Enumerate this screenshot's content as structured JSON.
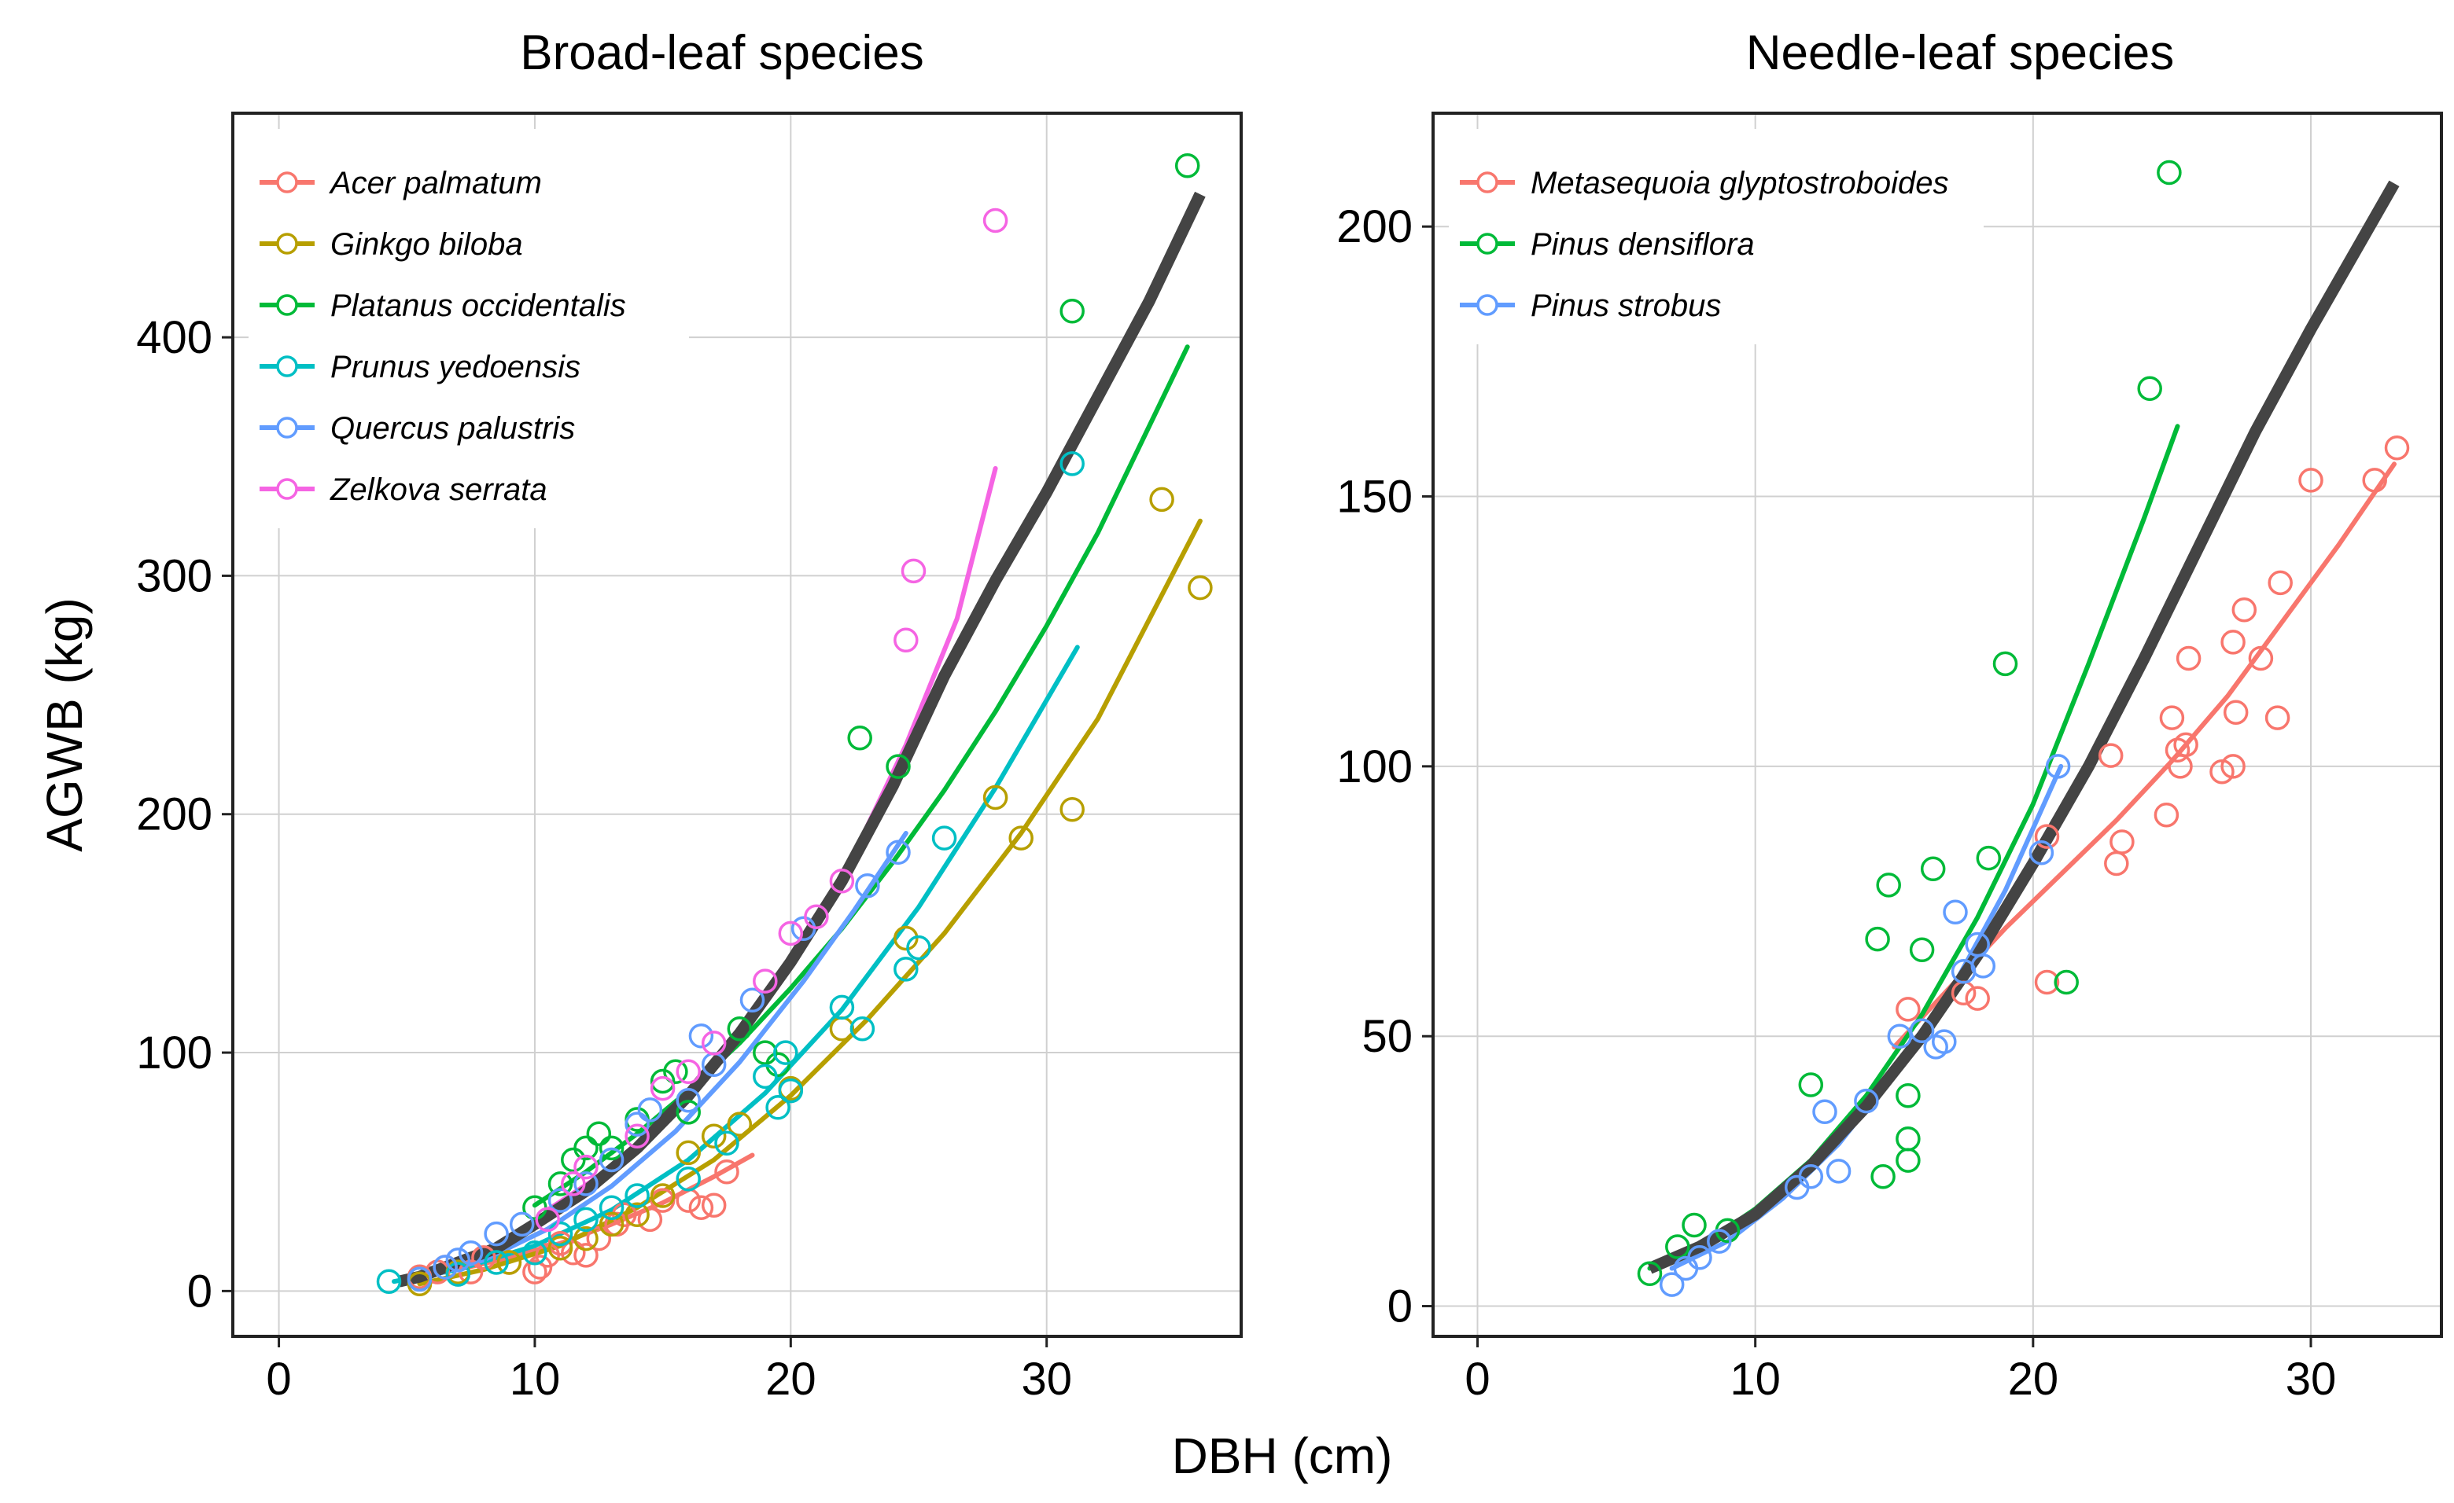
{
  "figure": {
    "xlabel": "DBH (cm)",
    "ylabel": "AGWB (kg)"
  },
  "chart_data": [
    {
      "type": "scatter",
      "title": "Broad-leaf species",
      "xlabel": "DBH (cm)",
      "ylabel": "AGWB (kg)",
      "xlim": [
        -1.8,
        37.6
      ],
      "ylim": [
        -19,
        494
      ],
      "xticks": [
        0,
        10,
        20,
        30
      ],
      "yticks": [
        0,
        100,
        200,
        300,
        400
      ],
      "grid": true,
      "legend_position": "top-left",
      "fit_overall": {
        "color": "#444444",
        "x": [
          4.7,
          5.5,
          7,
          8.5,
          10,
          12,
          14,
          16,
          18,
          20,
          22,
          24,
          26,
          28,
          30,
          32,
          34,
          36
        ],
        "y": [
          4,
          6,
          12,
          18,
          28,
          42,
          60,
          82,
          108,
          138,
          172,
          212,
          258,
          298,
          335,
          375,
          415,
          460
        ]
      },
      "series": [
        {
          "name": "Acer palmatum",
          "color": "#F8766D",
          "points": [
            [
              5.5,
              6
            ],
            [
              6.2,
              8
            ],
            [
              6.5,
              10
            ],
            [
              7.5,
              8
            ],
            [
              8,
              14
            ],
            [
              9,
              12
            ],
            [
              10,
              8
            ],
            [
              10.2,
              10
            ],
            [
              10.5,
              15
            ],
            [
              11,
              20
            ],
            [
              11.5,
              16
            ],
            [
              12,
              15
            ],
            [
              12.5,
              22
            ],
            [
              13.2,
              28
            ],
            [
              13.5,
              32
            ],
            [
              14.5,
              30
            ],
            [
              15,
              38
            ],
            [
              16,
              38
            ],
            [
              16.5,
              35
            ],
            [
              17,
              36
            ],
            [
              17.5,
              50
            ]
          ],
          "fit": {
            "x": [
              5,
              7,
              9,
              11,
              13,
              15,
              17,
              18.5
            ],
            "y": [
              5,
              9,
              14,
              20,
              28,
              37,
              48,
              57
            ]
          }
        },
        {
          "name": "Ginkgo biloba",
          "color": "#B79F00",
          "points": [
            [
              5.5,
              3
            ],
            [
              7,
              8
            ],
            [
              9,
              12
            ],
            [
              11,
              18
            ],
            [
              12,
              22
            ],
            [
              13,
              28
            ],
            [
              14,
              32
            ],
            [
              15,
              40
            ],
            [
              16,
              58
            ],
            [
              17,
              65
            ],
            [
              18,
              70
            ],
            [
              20,
              85
            ],
            [
              22,
              110
            ],
            [
              24.5,
              148
            ],
            [
              28,
              207
            ],
            [
              29,
              190
            ],
            [
              31,
              202
            ],
            [
              34.5,
              332
            ],
            [
              36,
              295
            ]
          ],
          "fit": {
            "x": [
              5.5,
              8,
              11,
              14,
              17,
              20,
              23,
              26,
              29,
              32,
              36
            ],
            "y": [
              3,
              9,
              19,
              35,
              55,
              82,
              114,
              150,
              192,
              240,
              323
            ]
          }
        },
        {
          "name": "Platanus occidentalis",
          "color": "#00BA38",
          "points": [
            [
              10,
              35
            ],
            [
              11,
              45
            ],
            [
              11.5,
              55
            ],
            [
              12,
              60
            ],
            [
              12.5,
              66
            ],
            [
              13,
              60
            ],
            [
              14,
              72
            ],
            [
              15,
              88
            ],
            [
              15.5,
              92
            ],
            [
              16,
              75
            ],
            [
              18,
              110
            ],
            [
              19,
              100
            ],
            [
              19.5,
              95
            ],
            [
              22.7,
              232
            ],
            [
              24.2,
              220
            ],
            [
              31,
              411
            ],
            [
              35.5,
              472
            ]
          ],
          "fit": {
            "x": [
              10,
              12,
              14,
              16,
              18,
              20,
              22,
              24,
              26,
              28,
              30,
              32,
              35.5
            ],
            "y": [
              36,
              50,
              66,
              84,
              104,
              127,
              152,
              180,
              210,
              243,
              279,
              318,
              396
            ]
          }
        },
        {
          "name": "Prunus yedoensis",
          "color": "#00BFC4",
          "points": [
            [
              4.3,
              4
            ],
            [
              5.5,
              5
            ],
            [
              7,
              7
            ],
            [
              8.5,
              12
            ],
            [
              10,
              16
            ],
            [
              11,
              24
            ],
            [
              12,
              30
            ],
            [
              13,
              35
            ],
            [
              14,
              40
            ],
            [
              16,
              47
            ],
            [
              17.5,
              62
            ],
            [
              19,
              90
            ],
            [
              19.8,
              100
            ],
            [
              20,
              84
            ],
            [
              19.5,
              77
            ],
            [
              22,
              119
            ],
            [
              22.8,
              110
            ],
            [
              24.5,
              135
            ],
            [
              25,
              144
            ],
            [
              26,
              190
            ],
            [
              31,
              347
            ]
          ],
          "fit": {
            "x": [
              4.5,
              7,
              10,
              13,
              16,
              19,
              22,
              25,
              28,
              31.2
            ],
            "y": [
              4,
              9,
              19,
              34,
              55,
              83,
              118,
              161,
              211,
              270
            ]
          }
        },
        {
          "name": "Quercus palustris",
          "color": "#619CFF",
          "points": [
            [
              5.5,
              5
            ],
            [
              6.5,
              10
            ],
            [
              7,
              13
            ],
            [
              7.5,
              16
            ],
            [
              8.5,
              24
            ],
            [
              9.5,
              28
            ],
            [
              11,
              38
            ],
            [
              12,
              45
            ],
            [
              13,
              55
            ],
            [
              14,
              70
            ],
            [
              14.5,
              76
            ],
            [
              16,
              80
            ],
            [
              16.5,
              107
            ],
            [
              17,
              95
            ],
            [
              18.5,
              122
            ],
            [
              20.5,
              152
            ],
            [
              23,
              170
            ],
            [
              24.2,
              184
            ]
          ],
          "fit": {
            "x": [
              5.5,
              8,
              10.5,
              13,
              15.5,
              18,
              20.5,
              22.5,
              24.5
            ],
            "y": [
              5,
              13,
              26,
              44,
              67,
              96,
              130,
              160,
              192
            ]
          }
        },
        {
          "name": "Zelkova serrata",
          "color": "#F564E3",
          "points": [
            [
              10.5,
              30
            ],
            [
              11.5,
              45
            ],
            [
              12,
              52
            ],
            [
              14,
              65
            ],
            [
              15,
              85
            ],
            [
              16,
              92
            ],
            [
              17,
              104
            ],
            [
              19,
              130
            ],
            [
              20,
              150
            ],
            [
              21,
              157
            ],
            [
              22,
              172
            ],
            [
              24.5,
              273
            ],
            [
              24.8,
              302
            ],
            [
              28,
              449
            ]
          ],
          "fit": {
            "x": [
              10.5,
              12.5,
              14.5,
              16.5,
              18.5,
              20.5,
              22.5,
              24.5,
              26.5,
              28
            ],
            "y": [
              34,
              48,
              66,
              88,
              114,
              146,
              184,
              229,
              282,
              345
            ]
          }
        }
      ]
    },
    {
      "type": "scatter",
      "title": "Needle-leaf species",
      "xlabel": "DBH (cm)",
      "ylabel": "AGWB (kg)",
      "xlim": [
        -1.6,
        34.7
      ],
      "ylim": [
        -5.6,
        221
      ],
      "xticks": [
        0,
        10,
        20,
        30
      ],
      "yticks": [
        0,
        50,
        100,
        150,
        200
      ],
      "grid": true,
      "legend_position": "top-left",
      "fit_overall": {
        "color": "#444444",
        "x": [
          6.2,
          8,
          10,
          12,
          14,
          16,
          18,
          20,
          22,
          24,
          26,
          28,
          30,
          33
        ],
        "y": [
          7,
          11,
          17,
          26,
          37,
          50,
          65,
          82,
          100,
          120,
          141,
          162,
          181,
          208
        ]
      },
      "series": [
        {
          "name": "Metasequoia glyptostroboides",
          "color": "#F8766D",
          "points": [
            [
              15.5,
              55
            ],
            [
              17.5,
              58
            ],
            [
              18,
              57
            ],
            [
              20.5,
              87
            ],
            [
              20.5,
              60
            ],
            [
              22.8,
              102
            ],
            [
              23,
              82
            ],
            [
              23.2,
              86
            ],
            [
              24.8,
              91
            ],
            [
              25,
              109
            ],
            [
              25.2,
              103
            ],
            [
              25.3,
              100
            ],
            [
              25.5,
              104
            ],
            [
              25.6,
              120
            ],
            [
              26.8,
              99
            ],
            [
              27.2,
              100
            ],
            [
              27.2,
              123
            ],
            [
              27.3,
              110
            ],
            [
              27.6,
              129
            ],
            [
              28.2,
              120
            ],
            [
              28.8,
              109
            ],
            [
              28.9,
              134
            ],
            [
              30,
              153
            ],
            [
              32.3,
              153
            ],
            [
              33.1,
              159
            ]
          ],
          "fit": {
            "x": [
              15,
              17,
              19,
              21,
              23,
              25,
              27,
              29,
              31,
              33
            ],
            "y": [
              48,
              59,
              70,
              80,
              90,
              101,
              113,
              127,
              141,
              156
            ]
          }
        },
        {
          "name": "Pinus densiflora",
          "color": "#00BA38",
          "points": [
            [
              6.2,
              6
            ],
            [
              7.2,
              11
            ],
            [
              7.8,
              15
            ],
            [
              9,
              14
            ],
            [
              12,
              41
            ],
            [
              14.4,
              68
            ],
            [
              14.6,
              24
            ],
            [
              14.8,
              78
            ],
            [
              15.5,
              31
            ],
            [
              15.5,
              27
            ],
            [
              15.5,
              39
            ],
            [
              16,
              66
            ],
            [
              16.4,
              81
            ],
            [
              18.4,
              83
            ],
            [
              19,
              119
            ],
            [
              21.2,
              60
            ],
            [
              24.2,
              170
            ],
            [
              24.9,
              210
            ]
          ],
          "fit": {
            "x": [
              6.2,
              8,
              10,
              12,
              14,
              16,
              18,
              20,
              22,
              24,
              25.2
            ],
            "y": [
              7,
              11,
              18,
              27,
              39,
              54,
              72,
              93,
              119,
              146,
              163
            ]
          }
        },
        {
          "name": "Pinus strobus",
          "color": "#619CFF",
          "points": [
            [
              7,
              4
            ],
            [
              7.5,
              7
            ],
            [
              8,
              9
            ],
            [
              8.7,
              12
            ],
            [
              11.5,
              22
            ],
            [
              12,
              24
            ],
            [
              12.5,
              36
            ],
            [
              13,
              25
            ],
            [
              14,
              38
            ],
            [
              15.2,
              50
            ],
            [
              16,
              51
            ],
            [
              16.5,
              48
            ],
            [
              16.8,
              49
            ],
            [
              17.2,
              73
            ],
            [
              17.5,
              62
            ],
            [
              18,
              67
            ],
            [
              18.2,
              63
            ],
            [
              20.3,
              84
            ],
            [
              20.9,
              100
            ]
          ],
          "fit": {
            "x": [
              7,
              9,
              11,
              13,
              15,
              17,
              19,
              21
            ],
            "y": [
              7,
              12,
              20,
              30,
              43,
              58,
              77,
              100
            ]
          }
        }
      ]
    }
  ]
}
